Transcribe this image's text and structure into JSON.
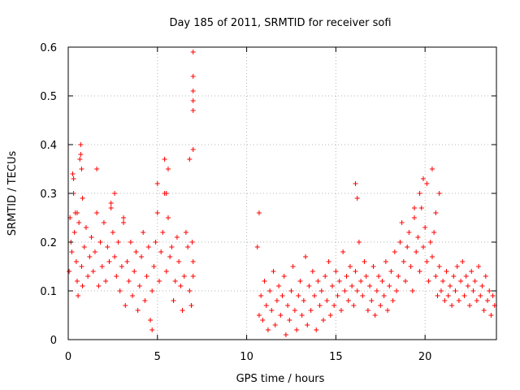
{
  "chart_data": {
    "type": "scatter",
    "title": "Day 185 of 2011, SRMTID for receiver sofi",
    "xlabel": "GPS time / hours",
    "ylabel": "SRMTID / TECUs",
    "xlim": [
      0,
      24
    ],
    "ylim": [
      0,
      0.6
    ],
    "xticks": [
      0,
      5,
      10,
      15,
      20
    ],
    "xtick_labels": [
      "0",
      "5",
      "10",
      "15",
      "20"
    ],
    "yticks": [
      0,
      0.1,
      0.2,
      0.3,
      0.4,
      0.5,
      0.6
    ],
    "ytick_labels": [
      "0",
      "0.1",
      "0.2",
      "0.3",
      "0.4",
      "0.5",
      "0.6"
    ],
    "grid": true,
    "marker": "+",
    "color": "#ff0000",
    "series": [
      {
        "name": "SRMTID",
        "x": [
          0.05,
          0.1,
          0.15,
          0.2,
          0.25,
          0.3,
          0.35,
          0.4,
          0.45,
          0.5,
          0.55,
          0.6,
          0.65,
          0.7,
          0.75,
          0.8,
          0.9,
          1.0,
          1.1,
          1.2,
          1.3,
          1.4,
          1.5,
          1.6,
          1.7,
          1.8,
          1.9,
          2.0,
          2.1,
          2.2,
          2.3,
          2.4,
          2.5,
          2.6,
          2.7,
          2.8,
          2.9,
          3.0,
          3.1,
          3.2,
          3.3,
          3.4,
          3.5,
          3.6,
          3.7,
          3.8,
          3.9,
          4.0,
          4.1,
          4.2,
          4.3,
          4.4,
          4.5,
          4.6,
          4.7,
          4.8,
          4.9,
          5.0,
          5.1,
          5.2,
          5.3,
          5.4,
          5.5,
          5.6,
          5.7,
          5.8,
          5.9,
          6.0,
          6.1,
          6.2,
          6.3,
          6.4,
          6.5,
          6.6,
          6.7,
          6.8,
          6.9,
          7.0,
          0.3,
          0.5,
          0.7,
          0.75,
          0.8,
          1.6,
          2.4,
          2.6,
          3.1,
          4.7,
          5.0,
          5.4,
          5.5,
          5.6,
          6.8,
          6.95,
          7.0,
          7.0,
          7.0,
          7.0,
          7.0,
          7.0,
          7.0,
          10.6,
          10.7,
          10.8,
          10.9,
          11.0,
          11.1,
          11.2,
          11.3,
          11.4,
          11.5,
          11.6,
          11.7,
          11.8,
          11.9,
          12.0,
          12.1,
          12.2,
          12.3,
          12.4,
          12.5,
          12.6,
          12.7,
          12.8,
          12.9,
          13.0,
          13.1,
          13.2,
          13.3,
          13.4,
          13.5,
          13.6,
          13.7,
          13.8,
          13.9,
          14.0,
          14.1,
          14.2,
          14.3,
          14.4,
          14.5,
          14.6,
          14.7,
          14.8,
          14.9,
          15.0,
          15.1,
          15.2,
          15.3,
          15.4,
          15.5,
          15.6,
          15.7,
          15.8,
          15.9,
          16.0,
          16.1,
          16.2,
          16.3,
          16.4,
          16.5,
          16.6,
          16.7,
          16.8,
          16.9,
          17.0,
          17.1,
          17.2,
          17.3,
          17.4,
          17.5,
          17.6,
          17.7,
          17.8,
          17.9,
          18.0,
          18.1,
          18.2,
          18.3,
          18.4,
          18.5,
          18.6,
          18.7,
          18.8,
          18.9,
          19.0,
          19.1,
          19.2,
          19.3,
          19.4,
          19.5,
          19.6,
          19.7,
          19.8,
          19.9,
          20.0,
          20.1,
          20.2,
          20.3,
          20.4,
          20.5,
          20.6,
          20.7,
          20.8,
          20.9,
          21.0,
          21.1,
          21.2,
          21.3,
          21.4,
          21.5,
          21.6,
          21.7,
          21.8,
          21.9,
          22.0,
          22.1,
          22.2,
          22.3,
          22.4,
          22.5,
          22.6,
          22.7,
          22.8,
          22.9,
          23.0,
          23.1,
          23.2,
          23.3,
          23.4,
          23.5,
          23.6,
          23.7,
          23.8,
          23.9,
          10.7,
          16.1,
          16.2,
          19.4,
          19.7,
          19.9,
          20.1,
          20.4,
          20.6,
          20.8
        ],
        "y": [
          0.14,
          0.25,
          0.2,
          0.18,
          0.34,
          0.3,
          0.22,
          0.26,
          0.16,
          0.12,
          0.09,
          0.24,
          0.37,
          0.4,
          0.15,
          0.11,
          0.19,
          0.23,
          0.13,
          0.17,
          0.21,
          0.14,
          0.18,
          0.26,
          0.11,
          0.2,
          0.15,
          0.24,
          0.12,
          0.19,
          0.16,
          0.28,
          0.22,
          0.17,
          0.13,
          0.2,
          0.1,
          0.15,
          0.24,
          0.07,
          0.16,
          0.12,
          0.2,
          0.09,
          0.14,
          0.18,
          0.06,
          0.11,
          0.17,
          0.22,
          0.08,
          0.13,
          0.19,
          0.04,
          0.1,
          0.15,
          0.2,
          0.26,
          0.12,
          0.18,
          0.22,
          0.3,
          0.14,
          0.25,
          0.17,
          0.19,
          0.08,
          0.12,
          0.21,
          0.16,
          0.11,
          0.06,
          0.13,
          0.22,
          0.19,
          0.1,
          0.07,
          0.16,
          0.33,
          0.26,
          0.38,
          0.35,
          0.29,
          0.35,
          0.27,
          0.3,
          0.25,
          0.02,
          0.32,
          0.37,
          0.3,
          0.35,
          0.37,
          0.2,
          0.39,
          0.59,
          0.54,
          0.51,
          0.49,
          0.47,
          0.13,
          0.19,
          0.05,
          0.09,
          0.04,
          0.12,
          0.07,
          0.02,
          0.1,
          0.06,
          0.14,
          0.03,
          0.08,
          0.11,
          0.05,
          0.09,
          0.13,
          0.01,
          0.07,
          0.04,
          0.1,
          0.15,
          0.06,
          0.02,
          0.09,
          0.12,
          0.05,
          0.08,
          0.17,
          0.03,
          0.11,
          0.06,
          0.14,
          0.09,
          0.02,
          0.12,
          0.07,
          0.1,
          0.04,
          0.13,
          0.08,
          0.16,
          0.05,
          0.11,
          0.07,
          0.14,
          0.09,
          0.12,
          0.06,
          0.18,
          0.1,
          0.13,
          0.08,
          0.15,
          0.11,
          0.07,
          0.14,
          0.1,
          0.2,
          0.12,
          0.09,
          0.16,
          0.13,
          0.06,
          0.11,
          0.08,
          0.15,
          0.05,
          0.1,
          0.13,
          0.07,
          0.12,
          0.09,
          0.16,
          0.06,
          0.11,
          0.14,
          0.08,
          0.18,
          0.1,
          0.13,
          0.2,
          0.24,
          0.16,
          0.12,
          0.19,
          0.22,
          0.15,
          0.1,
          0.25,
          0.18,
          0.21,
          0.14,
          0.27,
          0.19,
          0.23,
          0.16,
          0.12,
          0.2,
          0.17,
          0.22,
          0.13,
          0.09,
          0.15,
          0.1,
          0.12,
          0.08,
          0.14,
          0.09,
          0.11,
          0.07,
          0.13,
          0.1,
          0.15,
          0.08,
          0.12,
          0.16,
          0.09,
          0.13,
          0.11,
          0.07,
          0.14,
          0.1,
          0.12,
          0.08,
          0.15,
          0.09,
          0.11,
          0.06,
          0.13,
          0.08,
          0.1,
          0.05,
          0.09,
          0.07,
          0.26,
          0.32,
          0.29,
          0.27,
          0.3,
          0.33,
          0.32,
          0.35,
          0.26,
          0.3
        ]
      }
    ]
  }
}
